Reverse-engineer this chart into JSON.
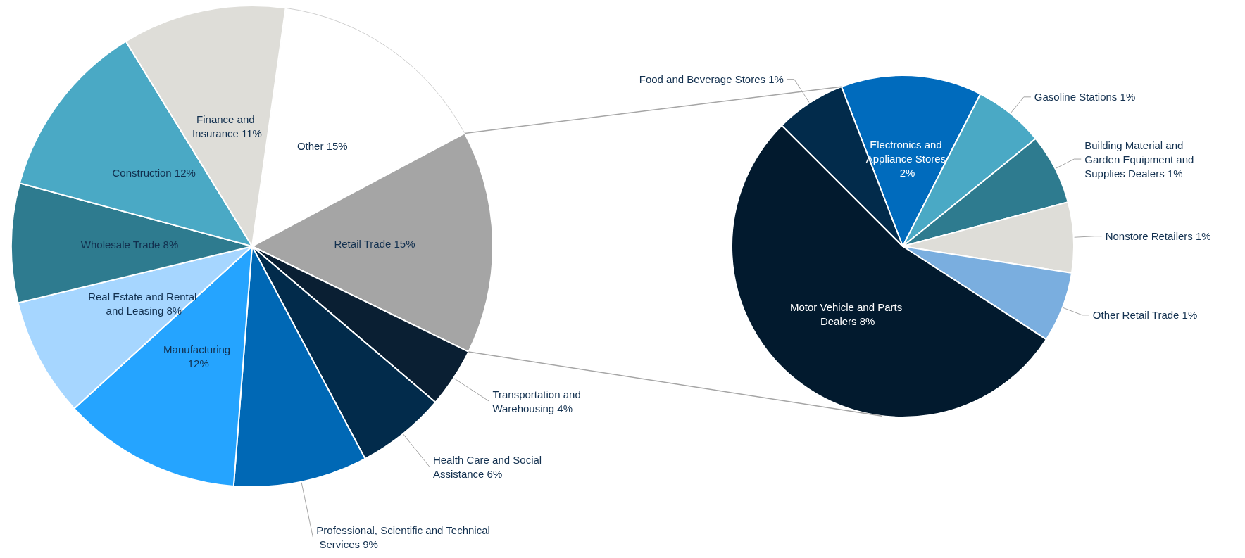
{
  "chart_data": [
    {
      "type": "pie",
      "categories": [
        "Other",
        "Retail Trade",
        "Transportation and Warehousing",
        "Health Care and Social Assistance",
        "Professional, Scientific and Technical Services",
        "Manufacturing",
        "Real Estate and Rental and Leasing",
        "Wholesale Trade",
        "Construction",
        "Finance and Insurance"
      ],
      "values": [
        15,
        15,
        4,
        6,
        9,
        12,
        8,
        8,
        12,
        11
      ],
      "colors": [
        "#ffffff",
        "#a5a5a5",
        "#0a1f33",
        "#022b4b",
        "#0068b5",
        "#25a4ff",
        "#a6d6ff",
        "#2e7b8f",
        "#4aa9c5",
        "#deddd8"
      ],
      "value_labels": [
        "15%",
        "15%",
        "4%",
        "6%",
        "9%",
        "12%",
        "8%",
        "8%",
        "12%",
        "11%"
      ]
    },
    {
      "type": "pie",
      "categories": [
        "Electronics and Appliance Stores",
        "Gasoline Stations",
        "Building Material and Garden Equipment and Supplies Dealers",
        "Nonstore Retailers",
        "Other Retail Trade",
        "Motor Vehicle and Parts Dealers",
        "Food and Beverage Stores"
      ],
      "values": [
        2,
        1,
        1,
        1,
        1,
        8,
        1
      ],
      "colors": [
        "#006bbd",
        "#4aa9c5",
        "#2e7b8f",
        "#deddd8",
        "#7aaedf",
        "#021a2e",
        "#022b4b"
      ],
      "value_labels": [
        "2%",
        "1%",
        "1%",
        "1%",
        "1%",
        "8%",
        "1%"
      ]
    }
  ]
}
